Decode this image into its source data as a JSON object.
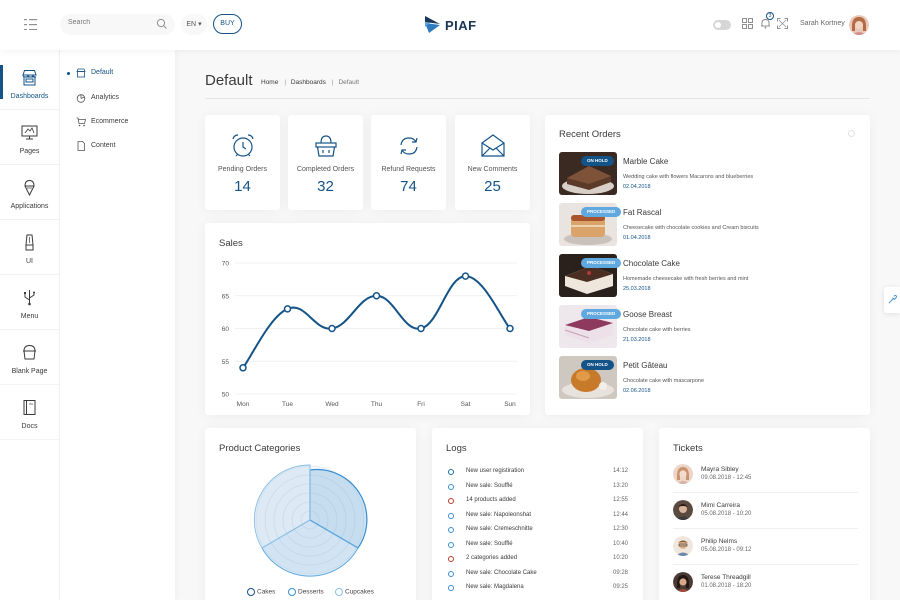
{
  "header": {
    "search_placeholder": "Search",
    "language": "EN",
    "buy_label": "BUY",
    "logo_text": "PIAF",
    "notification_count": "3",
    "user_name": "Sarah Kortney"
  },
  "sidebar": {
    "items": [
      {
        "label": "Dashboards",
        "icon": "shop-icon"
      },
      {
        "label": "Pages",
        "icon": "monitor-icon"
      },
      {
        "label": "Applications",
        "icon": "ice-cream-icon"
      },
      {
        "label": "UI",
        "icon": "pen-tool-icon"
      },
      {
        "label": "Menu",
        "icon": "usb-icon"
      },
      {
        "label": "Blank Page",
        "icon": "pot-icon"
      },
      {
        "label": "Docs",
        "icon": "book-icon"
      }
    ]
  },
  "subnav": {
    "items": [
      {
        "label": "Default",
        "icon": "shop-icon"
      },
      {
        "label": "Analytics",
        "icon": "pie-icon"
      },
      {
        "label": "Ecommerce",
        "icon": "cart-icon"
      },
      {
        "label": "Content",
        "icon": "file-icon"
      }
    ]
  },
  "page": {
    "title": "Default",
    "breadcrumb": [
      "Home",
      "Dashboards",
      "Default"
    ]
  },
  "stats": [
    {
      "label": "Pending Orders",
      "value": "14",
      "icon": "alarm-clock-icon"
    },
    {
      "label": "Completed Orders",
      "value": "32",
      "icon": "basket-icon"
    },
    {
      "label": "Refund Requests",
      "value": "74",
      "icon": "arrows-refresh-icon"
    },
    {
      "label": "New Comments",
      "value": "25",
      "icon": "mail-icon"
    }
  ],
  "sales": {
    "title": "Sales"
  },
  "chart_data": {
    "type": "line",
    "categories": [
      "Mon",
      "Tue",
      "Wed",
      "Thu",
      "Fri",
      "Sat",
      "Sun"
    ],
    "series": [
      {
        "values": [
          54,
          63,
          60,
          65,
          60,
          68,
          60
        ]
      }
    ],
    "ylim": [
      50,
      70
    ],
    "yticks": [
      50,
      55,
      60,
      65,
      70
    ],
    "grid": true,
    "color": "#145388"
  },
  "orders": {
    "title": "Recent Orders",
    "items": [
      {
        "name": "Marble Cake",
        "status": "ON HOLD",
        "desc": "Wedding cake with flowers Macarons and blueberries",
        "date": "02.04.2018"
      },
      {
        "name": "Fat Rascal",
        "status": "PROCESSED",
        "desc": "Cheesecake with chocolate cookies and Cream biscuits",
        "date": "01.04.2018"
      },
      {
        "name": "Chocolate Cake",
        "status": "PROCESSED",
        "desc": "Homemade cheesecake with fresh berries and mint",
        "date": "25.03.2018"
      },
      {
        "name": "Goose Breast",
        "status": "PROCESSED",
        "desc": "Chocolate cake with berries",
        "date": "21.03.2018"
      },
      {
        "name": "Petit Gâteau",
        "status": "ON HOLD",
        "desc": "Chocolate cake with mascarpone",
        "date": "02.06.2018"
      }
    ]
  },
  "categories": {
    "title": "Product Categories",
    "legend": [
      "Cakes",
      "Desserts",
      "Cupcakes"
    ]
  },
  "logs": {
    "title": "Logs",
    "items": [
      {
        "text": "New user registiration",
        "time": "14:12",
        "color": "#1b6cb0"
      },
      {
        "text": "New sale: Soufflé",
        "time": "13:20",
        "color": "#3a8ed0"
      },
      {
        "text": "14 products added",
        "time": "12:55",
        "color": "#c0392b"
      },
      {
        "text": "New sale: Napoleonshat",
        "time": "12:44",
        "color": "#3a8ed0"
      },
      {
        "text": "New sale: Cremeschnitte",
        "time": "12:30",
        "color": "#3a8ed0"
      },
      {
        "text": "New sale: Soufflé",
        "time": "10:40",
        "color": "#3a8ed0"
      },
      {
        "text": "2 categories added",
        "time": "10:20",
        "color": "#c0392b"
      },
      {
        "text": "New sale: Chocolate Cake",
        "time": "09:28",
        "color": "#3a8ed0"
      },
      {
        "text": "New sale: Magdalena",
        "time": "09:25",
        "color": "#3a8ed0"
      }
    ]
  },
  "tickets": {
    "title": "Tickets",
    "items": [
      {
        "name": "Mayra Sibley",
        "date": "09.08.2018 - 12:45"
      },
      {
        "name": "Mimi Carreira",
        "date": "05.08.2018 - 10:20"
      },
      {
        "name": "Philip Nelms",
        "date": "05.08.2018 - 09:12"
      },
      {
        "name": "Terese Threadgill",
        "date": "01.08.2018 - 18:20"
      }
    ]
  }
}
